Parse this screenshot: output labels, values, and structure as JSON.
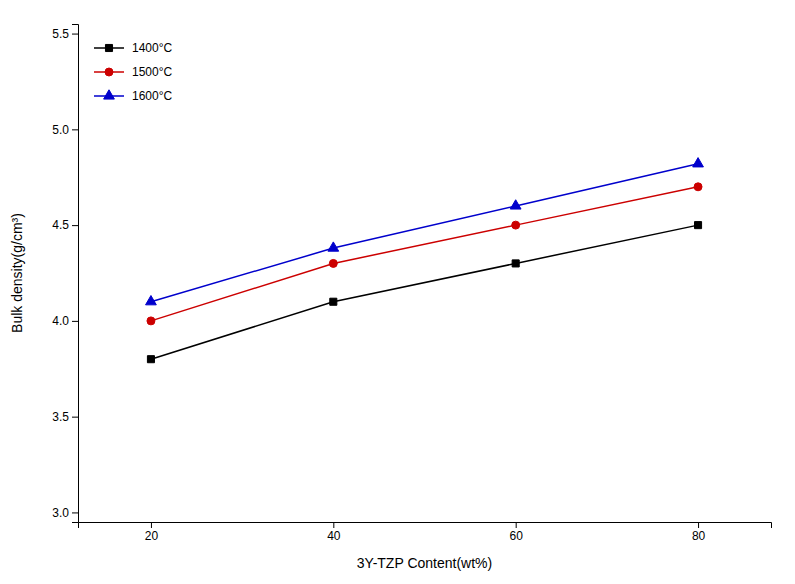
{
  "chart_data": {
    "type": "line",
    "x": [
      20,
      40,
      60,
      80
    ],
    "series": [
      {
        "name": "1400°C",
        "color": "#000000",
        "marker": "square",
        "values": [
          3.8,
          4.1,
          4.3,
          4.5
        ]
      },
      {
        "name": "1500°C",
        "color": "#cc0000",
        "marker": "circle",
        "values": [
          4.0,
          4.3,
          4.5,
          4.7
        ]
      },
      {
        "name": "1600°C",
        "color": "#0000cc",
        "marker": "triangle",
        "values": [
          4.1,
          4.38,
          4.6,
          4.82
        ]
      }
    ],
    "xlabel": "3Y-TZP Content(wt%)",
    "ylabel": "Bulk density(g/cm³)",
    "xlim": [
      12,
      88
    ],
    "ylim": [
      2.95,
      5.55
    ],
    "xticks": [
      20,
      40,
      60,
      80
    ],
    "yticks": [
      {
        "value": 3.0,
        "label": "3.0"
      },
      3.5,
      {
        "value": 4.0,
        "label": "4.0"
      },
      4.5,
      {
        "value": 5.0,
        "label": "5.0"
      },
      5.5
    ],
    "legend": "upper-left",
    "grid": false
  }
}
